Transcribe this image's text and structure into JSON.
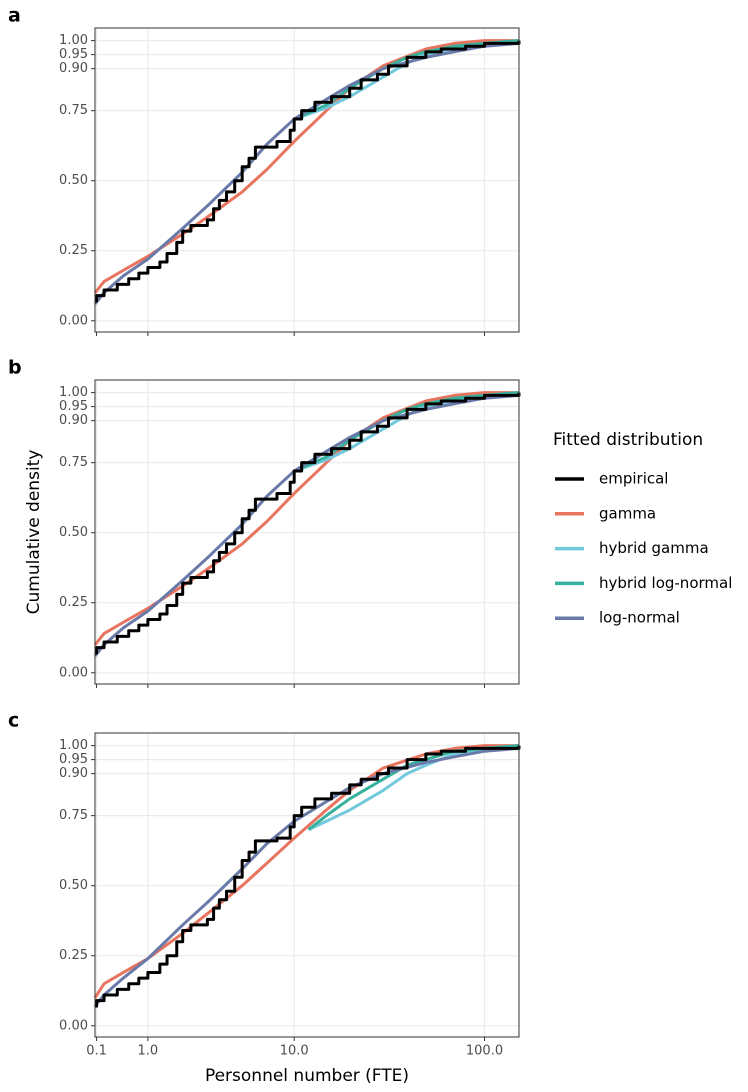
{
  "chart_data": [
    {
      "type": "line",
      "panel_label": "a",
      "xscale": "log1p",
      "xlim": [
        0.08,
        150
      ],
      "ylim": [
        -0.04,
        1.045
      ],
      "xticks": [
        0.1,
        {
          "value": 1,
          "label": "1.0"
        },
        {
          "value": 10,
          "label": "10.0"
        },
        {
          "value": 100,
          "label": "100.0"
        }
      ],
      "yticks": [
        {
          "value": 0,
          "label": "0.00"
        },
        {
          "value": 0.25,
          "label": "0.25"
        },
        {
          "value": 0.5,
          "label": "0.50"
        },
        {
          "value": 0.75,
          "label": "0.75"
        },
        {
          "value": 0.9,
          "label": "0.90"
        },
        {
          "value": 0.95,
          "label": "0.95"
        },
        {
          "value": 1,
          "label": "1.00"
        }
      ],
      "grid": true,
      "series": [
        {
          "name": "empirical",
          "color": "#000000",
          "drawstyle": "steps-post",
          "x": [
            0.08,
            0.1,
            0.2,
            0.4,
            0.6,
            0.8,
            1.0,
            1.3,
            1.5,
            1.8,
            2.0,
            2.3,
            3.0,
            3.3,
            3.6,
            4.0,
            4.5,
            5.0,
            5.5,
            6.0,
            8.0,
            9.5,
            10,
            11,
            13,
            16,
            20,
            23,
            28,
            32,
            40,
            50,
            60,
            80,
            100,
            150
          ],
          "values": [
            0.07,
            0.09,
            0.11,
            0.13,
            0.15,
            0.17,
            0.19,
            0.21,
            0.24,
            0.28,
            0.32,
            0.34,
            0.36,
            0.4,
            0.43,
            0.46,
            0.5,
            0.55,
            0.58,
            0.62,
            0.64,
            0.68,
            0.72,
            0.75,
            0.78,
            0.8,
            0.83,
            0.86,
            0.88,
            0.91,
            0.94,
            0.96,
            0.97,
            0.98,
            0.99,
            1.0
          ]
        },
        {
          "name": "gamma",
          "color": "#e8735f",
          "x": [
            0.08,
            0.2,
            0.5,
            1,
            2,
            3,
            5,
            7,
            10,
            15,
            20,
            30,
            50,
            70,
            100,
            150
          ],
          "values": [
            0.1,
            0.14,
            0.18,
            0.23,
            0.31,
            0.37,
            0.46,
            0.54,
            0.64,
            0.75,
            0.83,
            0.91,
            0.97,
            0.99,
            1.0,
            1.0
          ]
        },
        {
          "name": "hybrid gamma",
          "color": "#72c9dd",
          "x": [
            10,
            15,
            20,
            30,
            40,
            50,
            70,
            100,
            150
          ],
          "values": [
            0.72,
            0.76,
            0.8,
            0.87,
            0.92,
            0.95,
            0.97,
            0.99,
            1.0
          ]
        },
        {
          "name": "hybrid log-normal",
          "color": "#35b19d",
          "x": [
            10,
            15,
            20,
            30,
            40,
            50,
            70,
            100,
            150
          ],
          "values": [
            0.72,
            0.77,
            0.83,
            0.9,
            0.94,
            0.96,
            0.98,
            0.99,
            1.0
          ]
        },
        {
          "name": "log-normal",
          "color": "#6a7aa8",
          "x": [
            0.08,
            0.2,
            0.5,
            1,
            2,
            3,
            5,
            7,
            10,
            15,
            20,
            30,
            50,
            70,
            100,
            150
          ],
          "values": [
            0.06,
            0.1,
            0.16,
            0.22,
            0.33,
            0.41,
            0.53,
            0.63,
            0.72,
            0.79,
            0.84,
            0.9,
            0.94,
            0.96,
            0.98,
            0.99
          ]
        }
      ]
    },
    {
      "type": "line",
      "panel_label": "b",
      "xscale": "log1p",
      "xlim": [
        0.08,
        150
      ],
      "ylim": [
        -0.04,
        1.045
      ],
      "ylabel": "Cumulative density",
      "legend_title": "Fitted distribution",
      "legend": "right",
      "xticks": [
        0.1,
        {
          "value": 1,
          "label": "1.0"
        },
        {
          "value": 10,
          "label": "10.0"
        },
        {
          "value": 100,
          "label": "100.0"
        }
      ],
      "yticks": [
        {
          "value": 0,
          "label": "0.00"
        },
        {
          "value": 0.25,
          "label": "0.25"
        },
        {
          "value": 0.5,
          "label": "0.50"
        },
        {
          "value": 0.75,
          "label": "0.75"
        },
        {
          "value": 0.9,
          "label": "0.90"
        },
        {
          "value": 0.95,
          "label": "0.95"
        },
        {
          "value": 1,
          "label": "1.00"
        }
      ],
      "grid": true,
      "series": [
        {
          "name": "empirical",
          "color": "#000000",
          "drawstyle": "steps-post",
          "x": [
            0.08,
            0.1,
            0.2,
            0.4,
            0.6,
            0.8,
            1.0,
            1.3,
            1.5,
            1.8,
            2.0,
            2.3,
            3.0,
            3.3,
            3.6,
            4.0,
            4.5,
            5.0,
            5.5,
            6.0,
            8.0,
            9.5,
            10,
            11,
            13,
            16,
            20,
            23,
            28,
            32,
            40,
            50,
            60,
            80,
            100,
            150
          ],
          "values": [
            0.07,
            0.09,
            0.11,
            0.13,
            0.15,
            0.17,
            0.19,
            0.21,
            0.24,
            0.28,
            0.32,
            0.34,
            0.36,
            0.4,
            0.43,
            0.46,
            0.5,
            0.55,
            0.58,
            0.62,
            0.64,
            0.68,
            0.72,
            0.75,
            0.78,
            0.8,
            0.83,
            0.86,
            0.88,
            0.91,
            0.94,
            0.96,
            0.97,
            0.98,
            0.99,
            1.0
          ]
        },
        {
          "name": "gamma",
          "color": "#e8735f",
          "x": [
            0.08,
            0.2,
            0.5,
            1,
            2,
            3,
            5,
            7,
            10,
            15,
            20,
            30,
            50,
            70,
            100,
            150
          ],
          "values": [
            0.1,
            0.14,
            0.18,
            0.23,
            0.31,
            0.37,
            0.46,
            0.54,
            0.64,
            0.75,
            0.83,
            0.91,
            0.97,
            0.99,
            1.0,
            1.0
          ]
        },
        {
          "name": "hybrid gamma",
          "color": "#72c9dd",
          "x": [
            10,
            15,
            20,
            30,
            40,
            50,
            70,
            100,
            150
          ],
          "values": [
            0.72,
            0.76,
            0.8,
            0.87,
            0.92,
            0.95,
            0.97,
            0.99,
            1.0
          ]
        },
        {
          "name": "hybrid log-normal",
          "color": "#35b19d",
          "x": [
            10,
            15,
            20,
            30,
            40,
            50,
            70,
            100,
            150
          ],
          "values": [
            0.72,
            0.77,
            0.83,
            0.9,
            0.94,
            0.96,
            0.98,
            0.99,
            1.0
          ]
        },
        {
          "name": "log-normal",
          "color": "#6a7aa8",
          "x": [
            0.08,
            0.2,
            0.5,
            1,
            2,
            3,
            5,
            7,
            10,
            15,
            20,
            30,
            50,
            70,
            100,
            150
          ],
          "values": [
            0.06,
            0.1,
            0.16,
            0.22,
            0.33,
            0.41,
            0.53,
            0.63,
            0.72,
            0.79,
            0.84,
            0.9,
            0.94,
            0.96,
            0.98,
            0.99
          ]
        }
      ]
    },
    {
      "type": "line",
      "panel_label": "c",
      "xscale": "log1p",
      "xlim": [
        0.08,
        150
      ],
      "ylim": [
        -0.04,
        1.045
      ],
      "xlabel": "Personnel number (FTE)",
      "xticks": [
        0.1,
        {
          "value": 1,
          "label": "1.0"
        },
        {
          "value": 10,
          "label": "10.0"
        },
        {
          "value": 100,
          "label": "100.0"
        }
      ],
      "yticks": [
        {
          "value": 0,
          "label": "0.00"
        },
        {
          "value": 0.25,
          "label": "0.25"
        },
        {
          "value": 0.5,
          "label": "0.50"
        },
        {
          "value": 0.75,
          "label": "0.75"
        },
        {
          "value": 0.9,
          "label": "0.90"
        },
        {
          "value": 0.95,
          "label": "0.95"
        },
        {
          "value": 1,
          "label": "1.00"
        }
      ],
      "grid": true,
      "series": [
        {
          "name": "empirical",
          "color": "#000000",
          "drawstyle": "steps-post",
          "x": [
            0.08,
            0.1,
            0.2,
            0.4,
            0.6,
            0.8,
            1.0,
            1.3,
            1.5,
            1.8,
            2.0,
            2.3,
            3.0,
            3.3,
            3.6,
            4.0,
            4.5,
            5.0,
            5.5,
            6.0,
            8.0,
            9.5,
            10,
            11,
            13,
            16,
            20,
            23,
            28,
            32,
            40,
            50,
            60,
            80,
            100,
            150
          ],
          "values": [
            0.07,
            0.09,
            0.11,
            0.13,
            0.15,
            0.17,
            0.19,
            0.22,
            0.25,
            0.3,
            0.34,
            0.36,
            0.38,
            0.42,
            0.45,
            0.48,
            0.53,
            0.59,
            0.62,
            0.66,
            0.67,
            0.71,
            0.75,
            0.78,
            0.81,
            0.83,
            0.86,
            0.88,
            0.9,
            0.92,
            0.95,
            0.97,
            0.98,
            0.99,
            0.99,
            1.0
          ]
        },
        {
          "name": "gamma",
          "color": "#e8735f",
          "x": [
            0.08,
            0.2,
            0.5,
            1,
            2,
            3,
            5,
            7,
            10,
            15,
            20,
            30,
            50,
            70,
            100,
            150
          ],
          "values": [
            0.1,
            0.15,
            0.19,
            0.24,
            0.33,
            0.4,
            0.5,
            0.58,
            0.67,
            0.77,
            0.84,
            0.92,
            0.97,
            0.99,
            1.0,
            1.0
          ]
        },
        {
          "name": "hybrid gamma",
          "color": "#72c9dd",
          "x": [
            12,
            15,
            20,
            30,
            40,
            50,
            70,
            100,
            150
          ],
          "values": [
            0.7,
            0.73,
            0.77,
            0.84,
            0.9,
            0.93,
            0.97,
            0.99,
            1.0
          ]
        },
        {
          "name": "hybrid log-normal",
          "color": "#35b19d",
          "x": [
            12,
            15,
            20,
            30,
            40,
            50,
            70,
            100,
            150
          ],
          "values": [
            0.7,
            0.75,
            0.81,
            0.88,
            0.93,
            0.95,
            0.98,
            0.99,
            1.0
          ]
        },
        {
          "name": "log-normal",
          "color": "#6a7aa8",
          "x": [
            0.08,
            0.2,
            0.5,
            1,
            2,
            3,
            5,
            7,
            10,
            15,
            20,
            30,
            50,
            70,
            100,
            150
          ],
          "values": [
            0.07,
            0.11,
            0.17,
            0.24,
            0.36,
            0.44,
            0.56,
            0.65,
            0.73,
            0.8,
            0.85,
            0.9,
            0.94,
            0.96,
            0.98,
            0.99
          ]
        }
      ]
    }
  ]
}
